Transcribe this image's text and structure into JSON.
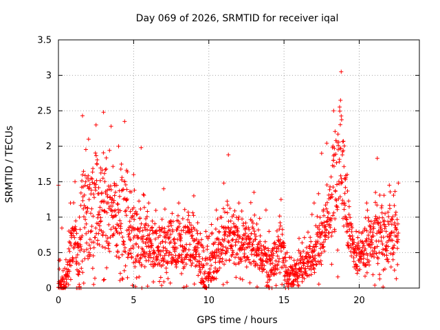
{
  "chart_data": {
    "type": "scatter",
    "title": "Day 069 of 2026, SRMTID for receiver iqal",
    "xlabel": "GPS time / hours",
    "ylabel": "SRMTID / TECUs",
    "xlim": [
      0,
      24
    ],
    "ylim": [
      0,
      3.5
    ],
    "x_ticks": [
      0,
      5,
      10,
      15,
      20
    ],
    "x_tick_labels": [
      "0",
      "5",
      "10",
      "15",
      "20"
    ],
    "y_ticks": [
      0,
      0.5,
      1,
      1.5,
      2,
      2.5,
      3,
      3.5
    ],
    "y_tick_labels": [
      "0",
      "0.5",
      "1",
      "1.5",
      "2",
      "2.5",
      "3",
      "3.5"
    ],
    "grid": true,
    "marker": "+",
    "series_color": "#ff0000",
    "series": [
      {
        "name": "SRMTID",
        "envelope_note": "approximate point-cloud envelope: [hour, typical_low, typical_high, peak]",
        "envelope": [
          [
            0.0,
            0.0,
            0.1,
            1.45
          ],
          [
            0.5,
            0.0,
            0.2,
            0.4
          ],
          [
            0.8,
            0.3,
            0.7,
            1.2
          ],
          [
            1.1,
            0.4,
            0.9,
            1.5
          ],
          [
            1.4,
            0.0,
            0.6,
            1.0
          ],
          [
            1.6,
            0.2,
            1.5,
            2.43
          ],
          [
            2.0,
            0.4,
            1.4,
            2.1
          ],
          [
            2.5,
            0.6,
            1.5,
            2.3
          ],
          [
            3.0,
            0.5,
            1.5,
            2.48
          ],
          [
            3.5,
            0.5,
            1.4,
            2.28
          ],
          [
            4.0,
            0.4,
            1.3,
            2.0
          ],
          [
            4.4,
            0.5,
            1.5,
            2.35
          ],
          [
            5.0,
            0.3,
            1.0,
            1.6
          ],
          [
            5.5,
            0.3,
            1.0,
            1.98
          ],
          [
            6.0,
            0.3,
            0.8,
            1.2
          ],
          [
            7.0,
            0.3,
            0.8,
            1.4
          ],
          [
            8.0,
            0.3,
            0.8,
            1.2
          ],
          [
            9.0,
            0.3,
            0.9,
            1.3
          ],
          [
            9.8,
            0.0,
            0.4,
            0.8
          ],
          [
            10.5,
            0.2,
            0.7,
            1.1
          ],
          [
            11.0,
            0.3,
            0.9,
            1.48
          ],
          [
            11.3,
            0.4,
            1.0,
            1.88
          ],
          [
            12.0,
            0.3,
            0.8,
            1.2
          ],
          [
            13.0,
            0.3,
            0.8,
            1.35
          ],
          [
            13.8,
            0.2,
            0.6,
            1.1
          ],
          [
            14.0,
            0.0,
            0.4,
            0.8
          ],
          [
            14.8,
            0.3,
            0.9,
            1.25
          ],
          [
            15.2,
            0.0,
            0.3,
            0.5
          ],
          [
            16.0,
            0.1,
            0.4,
            0.7
          ],
          [
            17.0,
            0.2,
            0.6,
            1.2
          ],
          [
            17.5,
            0.4,
            1.0,
            1.9
          ],
          [
            18.3,
            0.8,
            1.8,
            2.5
          ],
          [
            18.8,
            1.0,
            2.5,
            3.05
          ],
          [
            19.2,
            0.6,
            1.2,
            1.6
          ],
          [
            19.8,
            0.2,
            0.5,
            0.8
          ],
          [
            20.5,
            0.3,
            0.8,
            1.2
          ],
          [
            21.2,
            0.4,
            1.1,
            1.83
          ],
          [
            22.0,
            0.4,
            1.0,
            1.45
          ],
          [
            22.6,
            0.5,
            1.0,
            1.48
          ]
        ]
      }
    ]
  }
}
